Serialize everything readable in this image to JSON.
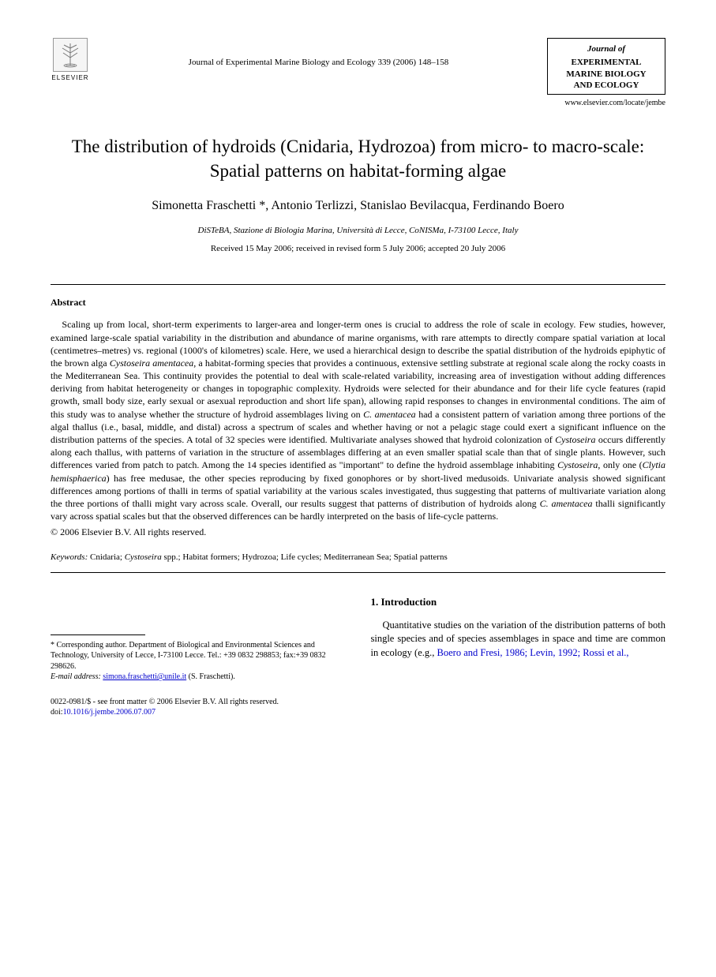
{
  "publisher": {
    "name": "ELSEVIER",
    "logo_alt": "tree"
  },
  "journal_ref": "Journal of Experimental Marine Biology and Ecology 339 (2006) 148–158",
  "journal_box": {
    "top": "Journal of",
    "line1": "EXPERIMENTAL",
    "line2": "MARINE BIOLOGY",
    "line3": "AND ECOLOGY"
  },
  "journal_url": "www.elsevier.com/locate/jembe",
  "title": "The distribution of hydroids (Cnidaria, Hydrozoa) from micro- to macro-scale: Spatial patterns on habitat-forming algae",
  "authors": "Simonetta Fraschetti *, Antonio Terlizzi, Stanislao Bevilacqua, Ferdinando Boero",
  "affiliation": "DiSTeBA, Stazione di Biologia Marina, Università di Lecce, CoNISMa, I-73100 Lecce, Italy",
  "dates": "Received 15 May 2006; received in revised form 5 July 2006; accepted 20 July 2006",
  "abstract": {
    "heading": "Abstract",
    "text": "Scaling up from local, short-term experiments to larger-area and longer-term ones is crucial to address the role of scale in ecology. Few studies, however, examined large-scale spatial variability in the distribution and abundance of marine organisms, with rare attempts to directly compare spatial variation at local (centimetres–metres) vs. regional (1000's of kilometres) scale. Here, we used a hierarchical design to describe the spatial distribution of the hydroids epiphytic of the brown alga Cystoseira amentacea, a habitat-forming species that provides a continuous, extensive settling substrate at regional scale along the rocky coasts in the Mediterranean Sea. This continuity provides the potential to deal with scale-related variability, increasing area of investigation without adding differences deriving from habitat heterogeneity or changes in topographic complexity. Hydroids were selected for their abundance and for their life cycle features (rapid growth, small body size, early sexual or asexual reproduction and short life span), allowing rapid responses to changes in environmental conditions. The aim of this study was to analyse whether the structure of hydroid assemblages living on C. amentacea had a consistent pattern of variation among three portions of the algal thallus (i.e., basal, middle, and distal) across a spectrum of scales and whether having or not a pelagic stage could exert a significant influence on the distribution patterns of the species. A total of 32 species were identified. Multivariate analyses showed that hydroid colonization of Cystoseira occurs differently along each thallus, with patterns of variation in the structure of assemblages differing at an even smaller spatial scale than that of single plants. However, such differences varied from patch to patch. Among the 14 species identified as \"important\" to define the hydroid assemblage inhabiting Cystoseira, only one (Clytia hemisphaerica) has free medusae, the other species reproducing by fixed gonophores or by short-lived medusoids. Univariate analysis showed significant differences among portions of thalli in terms of spatial variability at the various scales investigated, thus suggesting that patterns of multivariate variation along the three portions of thalli might vary across scale. Overall, our results suggest that patterns of distribution of hydroids along C. amentacea thalli significantly vary across spatial scales but that the observed differences can be hardly interpreted on the basis of life-cycle patterns.",
    "copyright": "© 2006 Elsevier B.V. All rights reserved."
  },
  "keywords": {
    "label": "Keywords:",
    "text": " Cnidaria; Cystoseira spp.; Habitat formers; Hydrozoa; Life cycles; Mediterranean Sea; Spatial patterns"
  },
  "footnote": {
    "corresponding": "* Corresponding author. Department of Biological and Environmental Sciences and Technology, University of Lecce, I-73100 Lecce. Tel.: +39 0832 298853; fax:+39 0832 298626.",
    "email_label": "E-mail address:",
    "email": "simona.fraschetti@unile.it",
    "email_suffix": " (S. Fraschetti)."
  },
  "section1": {
    "heading": "1. Introduction",
    "para": "Quantitative studies on the variation of the distribution patterns of both single species and of species assemblages in space and time are common in ecology (e.g., ",
    "refs": "Boero and Fresi, 1986; Levin, 1992; Rossi et al.,"
  },
  "footer": {
    "issn": "0022-0981/$ - see front matter © 2006 Elsevier B.V. All rights reserved.",
    "doi_label": "doi:",
    "doi": "10.1016/j.jembe.2006.07.007"
  },
  "colors": {
    "text": "#000000",
    "link": "#0000cc",
    "background": "#ffffff"
  },
  "typography": {
    "title_fontsize": 23,
    "authors_fontsize": 16,
    "body_fontsize": 12.5,
    "abstract_fontsize": 12,
    "footnote_fontsize": 10
  }
}
